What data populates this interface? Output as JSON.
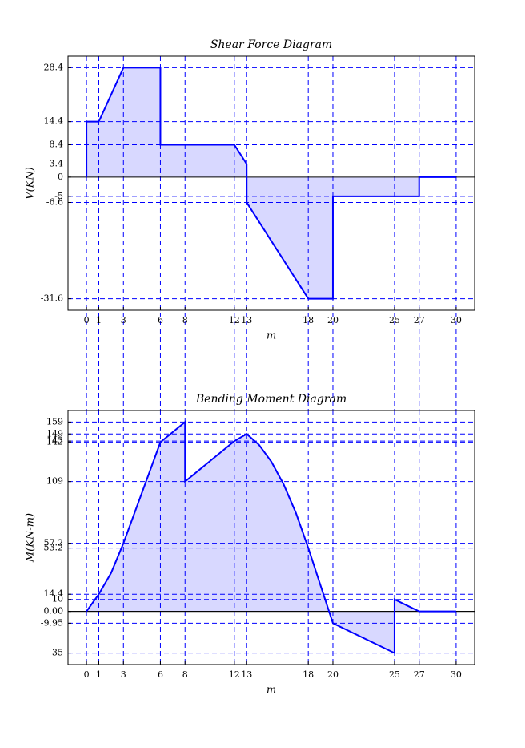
{
  "chart_data": [
    {
      "type": "line",
      "title": "Shear Force Diagram",
      "x_label": "m",
      "y_label": "V(KN)",
      "x": [
        0,
        0,
        1,
        3,
        6,
        6,
        12,
        13,
        13,
        18,
        20,
        20,
        27,
        27,
        30
      ],
      "values": [
        0,
        14.4,
        14.4,
        28.4,
        28.4,
        8.4,
        8.4,
        3.4,
        -6.6,
        -31.6,
        -31.6,
        -5,
        -5,
        0,
        0
      ],
      "color": "#0000ff",
      "fill_color": "#d8d8ff",
      "xlim": [
        -1.5,
        31.5
      ],
      "ylim": [
        -34.6,
        31.4
      ],
      "xticks": [
        0,
        1,
        3,
        6,
        8,
        12,
        13,
        18,
        20,
        25,
        27,
        30
      ],
      "yticks": [
        -31.6,
        -6.6,
        -5,
        0,
        3.4,
        8.4,
        14.4,
        28.4
      ],
      "grid": true,
      "grid_color": "#0000ff",
      "zero_line": true
    },
    {
      "type": "line",
      "title": "Bending Moment Diagram",
      "x_label": "m",
      "y_label": "M(KN-m)",
      "x": [
        0,
        1,
        2,
        3,
        6,
        8,
        8,
        12,
        13,
        14,
        15,
        16,
        17,
        18,
        20,
        25,
        25,
        27,
        30
      ],
      "values": [
        0,
        14.4,
        32.3,
        57.2,
        142,
        159,
        109,
        143,
        149,
        139.9,
        125.8,
        106.7,
        82.6,
        53.2,
        -9.95,
        -35,
        10,
        0,
        0
      ],
      "color": "#0000ff",
      "fill_color": "#d8d8ff",
      "xlim": [
        -1.5,
        31.5
      ],
      "ylim": [
        -44.7,
        168.7
      ],
      "xticks": [
        0,
        1,
        3,
        6,
        8,
        12,
        13,
        18,
        20,
        25,
        27,
        30
      ],
      "yticks": [
        -35,
        -9.95,
        0,
        {
          "value": 0,
          "label": "0.00"
        },
        10,
        14.4,
        53.2,
        57.2,
        109,
        142,
        143,
        149,
        159
      ],
      "grid": true,
      "grid_color": "#0000ff",
      "zero_line": true
    }
  ]
}
